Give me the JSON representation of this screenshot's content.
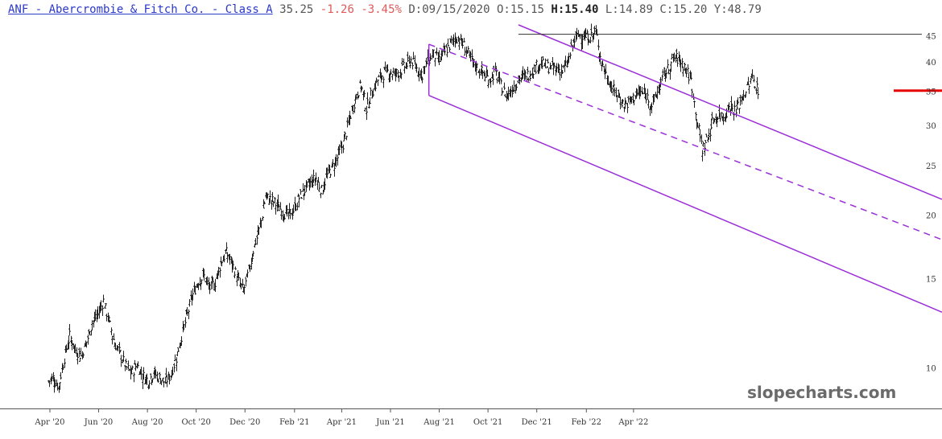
{
  "header": {
    "symbol": "ANF - Abercrombie & Fitch Co. - Class A",
    "last": "35.25",
    "change": "-1.26",
    "change_pct": "-3.45%",
    "d_label": "D:",
    "date": "09/15/2020",
    "o_label": "O:",
    "open": "15.15",
    "h_label": "H:",
    "high": "15.40",
    "l_label": "L:",
    "low": "14.89",
    "c_label": "C:",
    "close": "15.20",
    "y_label": "Y:",
    "year": "48.79"
  },
  "watermark": "slopecharts.com",
  "colors": {
    "bars": "#222222",
    "channel": "#9b30d9",
    "resistance": "#333333",
    "price_marker": "#e60000",
    "axis": "#555555"
  },
  "chart_data": {
    "type": "ohlc",
    "title": "ANF - Abercrombie & Fitch Co. - Class A",
    "y_scale": "log",
    "ylim": [
      8.6,
      48
    ],
    "y_ticks": [
      10,
      15,
      20,
      25,
      30,
      35,
      40,
      45
    ],
    "x_ticks": [
      "Apr '20",
      "Jun '20",
      "Aug '20",
      "Oct '20",
      "Dec '20",
      "Feb '21",
      "Apr '21",
      "Jun '21",
      "Aug '21",
      "Oct '21",
      "Dec '21",
      "Feb '22",
      "Apr '22"
    ],
    "grid": false,
    "weekly_closes": [
      9.6,
      9.2,
      10.5,
      11.6,
      10.9,
      10.6,
      11.3,
      12.3,
      12.8,
      13.6,
      12.4,
      11.2,
      10.7,
      10.1,
      9.8,
      10.2,
      9.7,
      9.5,
      9.8,
      9.6,
      9.4,
      9.7,
      10.5,
      11.6,
      12.8,
      14.0,
      14.9,
      15.2,
      14.4,
      14.8,
      16.2,
      16.9,
      16.1,
      15.0,
      14.2,
      15.5,
      17.5,
      19.0,
      21.8,
      21.5,
      21.0,
      20.4,
      20.0,
      20.5,
      21.7,
      22.5,
      23.2,
      23.7,
      22.4,
      24.0,
      25.0,
      26.3,
      28.0,
      31.0,
      34.0,
      36.2,
      32.5,
      35.0,
      37.0,
      38.0,
      38.5,
      38.0,
      38.5,
      39.5,
      40.5,
      39.0,
      38.0,
      40.5,
      41.5,
      40.5,
      42.0,
      43.5,
      45.0,
      44.0,
      42.0,
      40.0,
      39.0,
      38.0,
      37.0,
      38.5,
      36.0,
      34.5,
      35.5,
      37.0,
      37.5,
      38.0,
      39.0,
      40.0,
      39.5,
      39.0,
      39.0,
      38.5,
      40.0,
      44.0,
      45.5,
      45.0,
      45.0,
      46.0,
      40.0,
      37.5,
      35.5,
      34.5,
      33.0,
      33.5,
      34.5,
      35.0,
      34.5,
      33.0,
      35.0,
      37.5,
      39.0,
      41.0,
      40.5,
      39.0,
      37.0,
      31.0,
      27.0,
      28.5,
      31.0,
      31.5,
      31.5,
      33.0,
      32.0,
      34.0,
      35.5,
      37.5,
      35.25
    ],
    "channel_upper": [
      {
        "date": "2021-11-05",
        "value": 47.5
      },
      {
        "date": "2022-05-06",
        "value": 36.2
      }
    ],
    "channel_middle": [
      {
        "date": "2021-07-16",
        "value": 43.5
      },
      {
        "date": "2022-05-06",
        "value": 29.0
      }
    ],
    "channel_lower": [
      {
        "date": "2021-07-16",
        "value": 34.5
      },
      {
        "date": "2022-05-06",
        "value": 22.0
      }
    ],
    "resistance": {
      "start": "2021-11-05",
      "value": 45.5
    },
    "last_price": 35.25
  }
}
